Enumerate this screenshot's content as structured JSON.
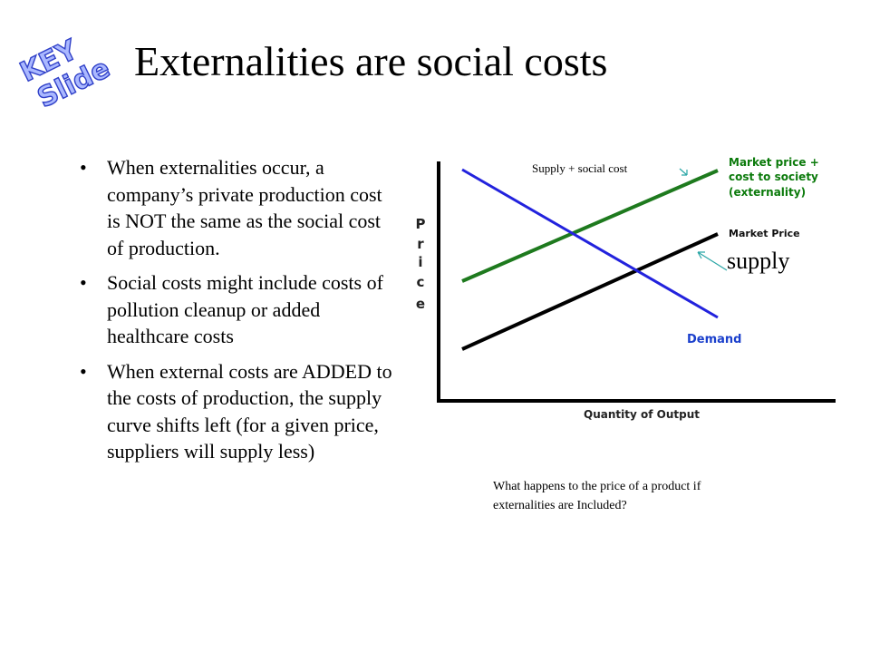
{
  "badge": {
    "line1": "KEY",
    "line2": "Slide"
  },
  "title": "Externalities are social costs",
  "bullets": [
    "When externalities occur, a company’s private production cost is NOT the same as the social cost of production.",
    "Social costs might include costs of pollution cleanup or added healthcare costs",
    "When external costs are ADDED to the costs of production, the supply curve shifts left (for a given price, suppliers will supply less)"
  ],
  "bullet_glyph": "•",
  "diagram": {
    "y_axis_label": "Price",
    "y_axis_letters": [
      "P",
      "r",
      "i",
      "c",
      "e"
    ],
    "x_axis_label": "Quantity of Output",
    "market_social_label": [
      "Market price +",
      "cost to society",
      "(externality)"
    ],
    "market_price_label": "Market Price",
    "demand_label": "Demand",
    "supply_social_note": "Supply + social cost",
    "supply_label": "supply",
    "colors": {
      "demand": "#2222dd",
      "social_supply": "#1e7a1e",
      "private_supply": "#000000",
      "arrows": "#2aa6a6",
      "label_green": "#0b7a0b",
      "label_blue": "#1a3fcc"
    }
  },
  "question": "What happens to the price of a product if externalities are Included?"
}
